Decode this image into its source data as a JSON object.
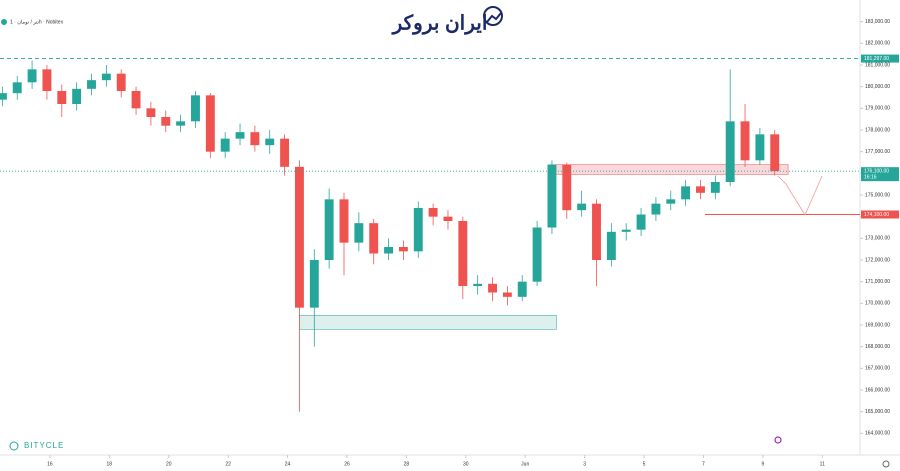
{
  "chart_data": {
    "type": "candlestick",
    "legend_text": "تتر / تومان · 1h · Nobitex",
    "brand": "ایران بروکر",
    "watermark": "BITYCLE",
    "up_color": "#26a69a",
    "down_color": "#ef5350",
    "x": [
      -1.6,
      -1.1,
      -0.6,
      -0.1,
      0.4,
      0.9,
      1.4,
      1.9,
      2.4,
      2.9,
      3.4,
      3.9,
      4.4,
      4.9,
      5.4,
      5.9,
      6.4,
      6.9,
      7.4,
      7.9,
      8.4,
      8.9,
      9.4,
      9.9,
      10.4,
      10.9,
      11.4,
      11.9,
      12.4,
      12.9,
      13.4,
      13.9,
      14.4,
      14.9,
      15.4,
      15.9,
      16.4,
      16.9,
      17.4,
      17.9,
      18.4,
      18.9,
      19.4,
      19.9,
      20.4,
      20.9,
      21.4,
      21.9,
      22.4,
      22.9,
      23.4,
      23.9,
      24.4
    ],
    "open": [
      179400,
      179700,
      180200,
      180800,
      179800,
      179200,
      179900,
      180300,
      180600,
      179800,
      179000,
      178600,
      178200,
      178400,
      179600,
      177000,
      177600,
      177900,
      177300,
      177600,
      176300,
      169800,
      172000,
      174800,
      172800,
      173700,
      172300,
      172600,
      172400,
      174400,
      174000,
      173800,
      170800,
      170900,
      170500,
      170300,
      171000,
      173500,
      176400,
      174300,
      174600,
      172000,
      173300,
      173400,
      174100,
      174600,
      174800,
      175400,
      175100,
      175600,
      178400,
      176600,
      177800
    ],
    "high": [
      180000,
      180500,
      181200,
      181000,
      180100,
      180200,
      180600,
      181000,
      180800,
      180000,
      179300,
      178900,
      178700,
      179800,
      179700,
      177900,
      178300,
      178200,
      178000,
      177800,
      176600,
      172500,
      175300,
      175100,
      174200,
      173900,
      173000,
      172900,
      174700,
      174600,
      174300,
      174000,
      171300,
      171200,
      170800,
      171300,
      173800,
      176600,
      176500,
      175200,
      174800,
      173700,
      173700,
      174400,
      174900,
      175200,
      175700,
      175700,
      175900,
      180800,
      179200,
      178100,
      178000
    ],
    "low": [
      179100,
      179400,
      179900,
      179400,
      178600,
      178900,
      179600,
      180000,
      179500,
      178700,
      178200,
      177900,
      177900,
      178100,
      176700,
      176700,
      177300,
      177000,
      176900,
      175900,
      165000,
      168000,
      171600,
      171300,
      172400,
      171800,
      172000,
      172000,
      172100,
      173600,
      173400,
      170200,
      170400,
      170100,
      169900,
      170100,
      170800,
      173200,
      173900,
      174000,
      170800,
      171700,
      172900,
      173100,
      173800,
      174300,
      174500,
      174800,
      174800,
      175400,
      176300,
      176400,
      175900
    ],
    "close": [
      179700,
      180200,
      180800,
      179800,
      179200,
      179900,
      180300,
      180600,
      179800,
      179000,
      178600,
      178200,
      178400,
      179600,
      177000,
      177600,
      177900,
      177300,
      177600,
      176300,
      169800,
      172000,
      174800,
      172800,
      173700,
      172300,
      172600,
      172400,
      174400,
      174000,
      173800,
      170800,
      170900,
      170500,
      170300,
      171000,
      173500,
      176400,
      174300,
      174600,
      172000,
      173300,
      173400,
      174100,
      174600,
      174800,
      175400,
      175100,
      175600,
      178400,
      176600,
      177800,
      176100
    ],
    "xlim": [
      -1.68,
      27.27
    ],
    "ylim": [
      163000,
      184000
    ],
    "xticks": [
      {
        "value": 0,
        "label": "16"
      },
      {
        "value": 2,
        "label": "18"
      },
      {
        "value": 4,
        "label": "20"
      },
      {
        "value": 6,
        "label": "22"
      },
      {
        "value": 8,
        "label": "24"
      },
      {
        "value": 10,
        "label": "26"
      },
      {
        "value": 12,
        "label": "28"
      },
      {
        "value": 14,
        "label": "30"
      },
      {
        "value": 16,
        "label": "Jun"
      },
      {
        "value": 18,
        "label": "3"
      },
      {
        "value": 20,
        "label": "5"
      },
      {
        "value": 22,
        "label": "7"
      },
      {
        "value": 24,
        "label": "9"
      },
      {
        "value": 26,
        "label": "11"
      }
    ],
    "yticks": [
      {
        "value": 164000,
        "label": "164,000.00"
      },
      {
        "value": 165000,
        "label": "165,000.00"
      },
      {
        "value": 166000,
        "label": "166,000.00"
      },
      {
        "value": 167000,
        "label": "167,000.00"
      },
      {
        "value": 168000,
        "label": "168,000.00"
      },
      {
        "value": 169000,
        "label": "169,000.00"
      },
      {
        "value": 170000,
        "label": "170,000.00"
      },
      {
        "value": 171000,
        "label": "171,000.00"
      },
      {
        "value": 172000,
        "label": "172,000.00"
      },
      {
        "value": 173000,
        "label": "173,000.00"
      },
      {
        "value": 174000,
        "label": "174,000.00"
      },
      {
        "value": 175000,
        "label": "175,000.00"
      },
      {
        "value": 176000,
        "label": "176,000.00"
      },
      {
        "value": 177000,
        "label": "177,000.00"
      },
      {
        "value": 178000,
        "label": "178,000.00"
      },
      {
        "value": 179000,
        "label": "179,000.00"
      },
      {
        "value": 180000,
        "label": "180,000.00"
      },
      {
        "value": 181000,
        "label": "181,000.00"
      },
      {
        "value": 182000,
        "label": "182,000.00"
      },
      {
        "value": 183000,
        "label": "183,000.00"
      }
    ],
    "levels": [
      {
        "value": 181297,
        "label": "181,297.00",
        "color": "#26a69a",
        "style": "dashed",
        "from": -1.68
      },
      {
        "value": 176100,
        "label": "176,100.00",
        "sublabel": "16:16",
        "color": "#26a69a",
        "style": "dotted",
        "from": -1.68
      },
      {
        "value": 174100,
        "label": "174,100.00",
        "color": "#ef5350",
        "style": "solid",
        "from": 22.05
      }
    ],
    "zones": [
      {
        "x": [
          16.8,
          24.85
        ],
        "y": [
          175950,
          176400
        ],
        "color": "#f7c6cc",
        "stroke": "#ef5350"
      },
      {
        "x": [
          8.4,
          17.05
        ],
        "y": [
          168800,
          169450
        ],
        "color": "#cfeae6",
        "stroke": "#26a69a"
      }
    ]
  }
}
